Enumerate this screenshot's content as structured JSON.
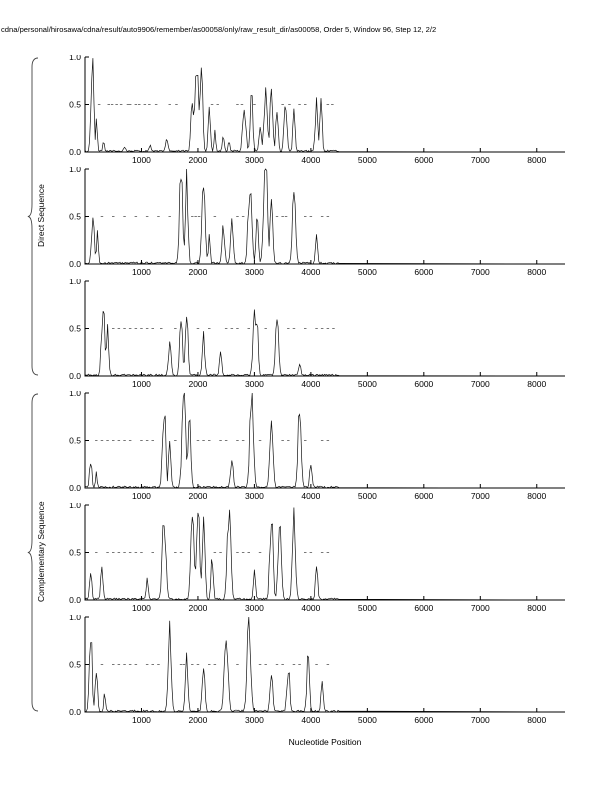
{
  "chart_data": {
    "type": "line",
    "title": "cdna/personal/hirosawa/cdna/result/auto9906/remember/as00058/only/raw_result_dir/as00058, Order 5, Window 96, Step 12, 2/2",
    "xlabel": "Nucleotide Position",
    "ylabel": "",
    "xlim": [
      0,
      8500
    ],
    "ylim": [
      0,
      1
    ],
    "xticks": [
      1000,
      2000,
      3000,
      4000,
      5000,
      6000,
      7000,
      8000
    ],
    "yticks": [
      0,
      0.5,
      1
    ],
    "grid": false,
    "legend": "none",
    "panel_count": 6,
    "group_labels": [
      {
        "label": "Direct Sequence",
        "panels": [
          1,
          2,
          3
        ]
      },
      {
        "label": "Complementary Sequence",
        "panels": [
          4,
          5,
          6
        ]
      }
    ],
    "series_note": "Each panel is a 0-1 probability trace vs nucleotide position; peaks given as [center,height,width]; marks are grey dashes at y=0.5",
    "panels": [
      {
        "name": "direct-1",
        "peaks": [
          [
            130,
            1.0,
            60
          ],
          [
            200,
            0.35,
            40
          ],
          [
            330,
            0.1,
            40
          ],
          [
            700,
            0.05,
            60
          ],
          [
            1150,
            0.07,
            50
          ],
          [
            1450,
            0.12,
            60
          ],
          [
            1900,
            0.55,
            60
          ],
          [
            1980,
            1.0,
            90
          ],
          [
            2060,
            0.95,
            60
          ],
          [
            2200,
            0.45,
            50
          ],
          [
            2300,
            0.2,
            40
          ],
          [
            2450,
            0.15,
            50
          ],
          [
            2550,
            0.1,
            40
          ],
          [
            2820,
            0.5,
            70
          ],
          [
            2950,
            0.55,
            60
          ],
          [
            3100,
            0.3,
            50
          ],
          [
            3200,
            0.6,
            80
          ],
          [
            3300,
            0.65,
            60
          ],
          [
            3400,
            0.5,
            50
          ],
          [
            3550,
            0.55,
            60
          ],
          [
            3700,
            0.4,
            50
          ],
          [
            4100,
            0.5,
            60
          ],
          [
            4180,
            0.55,
            50
          ]
        ],
        "marks": [
          250,
          420,
          480,
          560,
          640,
          760,
          800,
          900,
          960,
          1060,
          1140,
          1260,
          1500,
          1620,
          2250,
          2350,
          2700,
          2780,
          3000,
          3500,
          3620,
          3800,
          3900,
          4300,
          4380
        ]
      },
      {
        "name": "direct-2",
        "peaks": [
          [
            140,
            0.55,
            60
          ],
          [
            220,
            0.3,
            40
          ],
          [
            1700,
            0.95,
            70
          ],
          [
            1800,
            0.9,
            60
          ],
          [
            2100,
            0.92,
            70
          ],
          [
            2200,
            0.3,
            40
          ],
          [
            2450,
            0.38,
            60
          ],
          [
            2600,
            0.45,
            60
          ],
          [
            2920,
            0.85,
            80
          ],
          [
            3050,
            0.6,
            50
          ],
          [
            3200,
            1.0,
            90
          ],
          [
            3300,
            0.8,
            60
          ],
          [
            3700,
            0.85,
            70
          ],
          [
            4100,
            0.28,
            50
          ]
        ],
        "marks": [
          300,
          500,
          700,
          900,
          1100,
          1300,
          1500,
          1900,
          1960,
          2020,
          2300,
          2700,
          2800,
          3400,
          3500,
          3560,
          3900,
          4000,
          4200,
          4300
        ]
      },
      {
        "name": "direct-3",
        "peaks": [
          [
            320,
            0.75,
            70
          ],
          [
            400,
            0.5,
            50
          ],
          [
            1500,
            0.35,
            60
          ],
          [
            1700,
            0.6,
            60
          ],
          [
            1800,
            0.65,
            60
          ],
          [
            2100,
            0.4,
            60
          ],
          [
            2400,
            0.25,
            50
          ],
          [
            3000,
            0.65,
            70
          ],
          [
            3050,
            0.6,
            50
          ],
          [
            3400,
            0.6,
            70
          ],
          [
            3800,
            0.15,
            50
          ]
        ],
        "marks": [
          500,
          600,
          700,
          800,
          900,
          1000,
          1100,
          1200,
          1350,
          1600,
          2000,
          2200,
          2500,
          2600,
          2700,
          2900,
          3200,
          3600,
          3700,
          3900,
          4100,
          4200,
          4300,
          4400
        ]
      },
      {
        "name": "complementary-1",
        "peaks": [
          [
            100,
            0.3,
            50
          ],
          [
            200,
            0.15,
            40
          ],
          [
            1400,
            0.9,
            70
          ],
          [
            1500,
            0.5,
            50
          ],
          [
            1750,
            1.0,
            80
          ],
          [
            1850,
            0.8,
            60
          ],
          [
            2600,
            0.3,
            60
          ],
          [
            2950,
            0.95,
            80
          ],
          [
            3300,
            0.75,
            70
          ],
          [
            3800,
            0.85,
            70
          ],
          [
            4000,
            0.3,
            50
          ]
        ],
        "marks": [
          200,
          300,
          400,
          500,
          600,
          700,
          800,
          1000,
          1100,
          1200,
          1600,
          2000,
          2100,
          2200,
          2400,
          2500,
          2700,
          2800,
          3100,
          3500,
          3600,
          3900,
          4200,
          4300
        ]
      },
      {
        "name": "complementary-2",
        "peaks": [
          [
            100,
            0.35,
            50
          ],
          [
            300,
            0.35,
            50
          ],
          [
            1100,
            0.2,
            50
          ],
          [
            1400,
            0.9,
            80
          ],
          [
            1900,
            0.9,
            70
          ],
          [
            2000,
            0.95,
            70
          ],
          [
            2100,
            0.9,
            60
          ],
          [
            2250,
            0.5,
            50
          ],
          [
            2550,
            0.9,
            80
          ],
          [
            3000,
            0.3,
            50
          ],
          [
            3300,
            0.9,
            70
          ],
          [
            3450,
            0.95,
            70
          ],
          [
            3700,
            0.9,
            70
          ],
          [
            4100,
            0.35,
            50
          ]
        ],
        "marks": [
          200,
          400,
          500,
          600,
          700,
          800,
          900,
          1000,
          1200,
          1600,
          1700,
          2300,
          2400,
          2700,
          2800,
          2900,
          3100,
          3900,
          4000,
          4200,
          4300
        ]
      },
      {
        "name": "complementary-3",
        "peaks": [
          [
            100,
            0.9,
            60
          ],
          [
            200,
            0.5,
            50
          ],
          [
            350,
            0.2,
            40
          ],
          [
            1500,
            0.9,
            70
          ],
          [
            1800,
            0.55,
            60
          ],
          [
            2100,
            0.5,
            60
          ],
          [
            2500,
            0.85,
            80
          ],
          [
            2900,
            0.95,
            80
          ],
          [
            3300,
            0.4,
            60
          ],
          [
            3600,
            0.5,
            60
          ],
          [
            3950,
            0.55,
            60
          ],
          [
            4200,
            0.3,
            50
          ]
        ],
        "marks": [
          300,
          500,
          600,
          700,
          800,
          900,
          1100,
          1200,
          1300,
          1700,
          1750,
          1900,
          2000,
          2200,
          2300,
          2700,
          3100,
          3200,
          3400,
          3500,
          3700,
          3800,
          4100,
          4300
        ]
      }
    ],
    "colors": {
      "trace": "#111111",
      "marks": "#777777",
      "axis": "#000000"
    }
  }
}
